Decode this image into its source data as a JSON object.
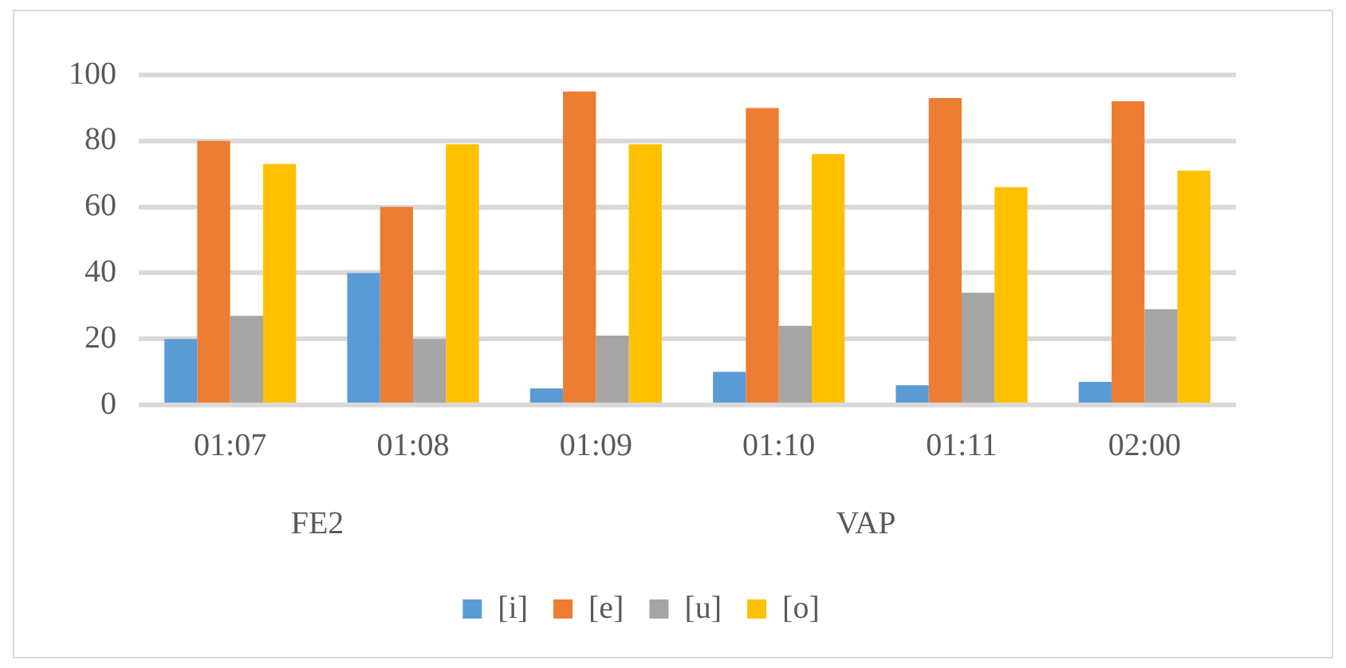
{
  "chart_data": {
    "type": "bar",
    "categories": [
      "01:07",
      "01:08",
      "01:09",
      "01:10",
      "01:11",
      "02:00"
    ],
    "series": [
      {
        "name": "[i]",
        "color": "#5b9bd5",
        "values": [
          20,
          40,
          5,
          10,
          6,
          7
        ]
      },
      {
        "name": "[e]",
        "color": "#ed7d31",
        "values": [
          80,
          60,
          95,
          90,
          93,
          92
        ]
      },
      {
        "name": "[u]",
        "color": "#a5a5a5",
        "values": [
          27,
          20,
          21,
          24,
          34,
          29
        ]
      },
      {
        "name": "[o]",
        "color": "#ffc000",
        "values": [
          73,
          79,
          79,
          76,
          66,
          71
        ]
      }
    ],
    "annotations": [
      "FE2",
      "VAP"
    ],
    "ylim": [
      0,
      100
    ],
    "yticks": [
      0,
      20,
      40,
      60,
      80,
      100
    ],
    "grid": "y",
    "legend": "bottom"
  }
}
